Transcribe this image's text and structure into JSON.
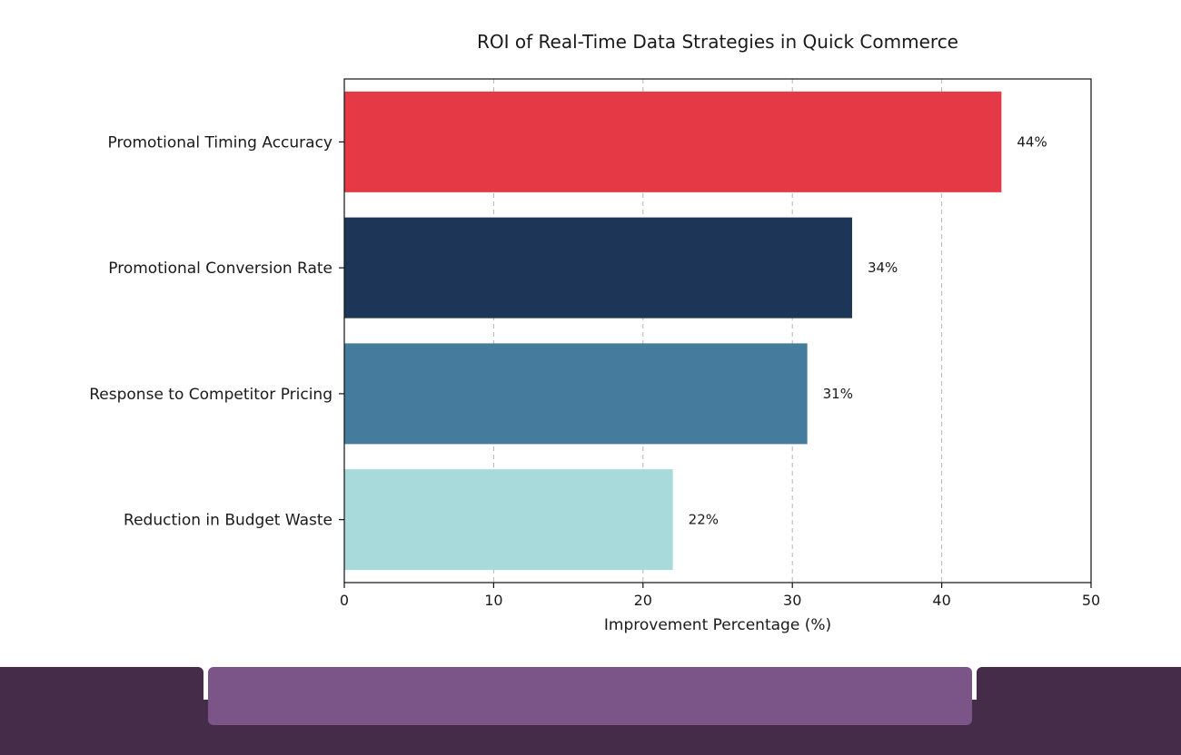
{
  "chart_data": {
    "type": "bar",
    "orientation": "horizontal",
    "title": "ROI of Real-Time Data Strategies in Quick Commerce",
    "xlabel": "Improvement Percentage (%)",
    "ylabel": "",
    "xlim": [
      0,
      50
    ],
    "xticks": [
      0,
      10,
      20,
      30,
      40,
      50
    ],
    "grid": "x-dashed",
    "categories": [
      "Promotional Timing Accuracy",
      "Promotional Conversion Rate",
      "Response to Competitor Pricing",
      "Reduction in Budget Waste"
    ],
    "values": [
      44,
      34,
      31,
      22
    ],
    "data_labels": [
      "44%",
      "34%",
      "31%",
      "22%"
    ],
    "colors": [
      "#e63946",
      "#1d3557",
      "#457b9d",
      "#a8dadc"
    ]
  },
  "footer": {
    "colors": {
      "base": "#452c48",
      "center": "#7b5588"
    }
  }
}
